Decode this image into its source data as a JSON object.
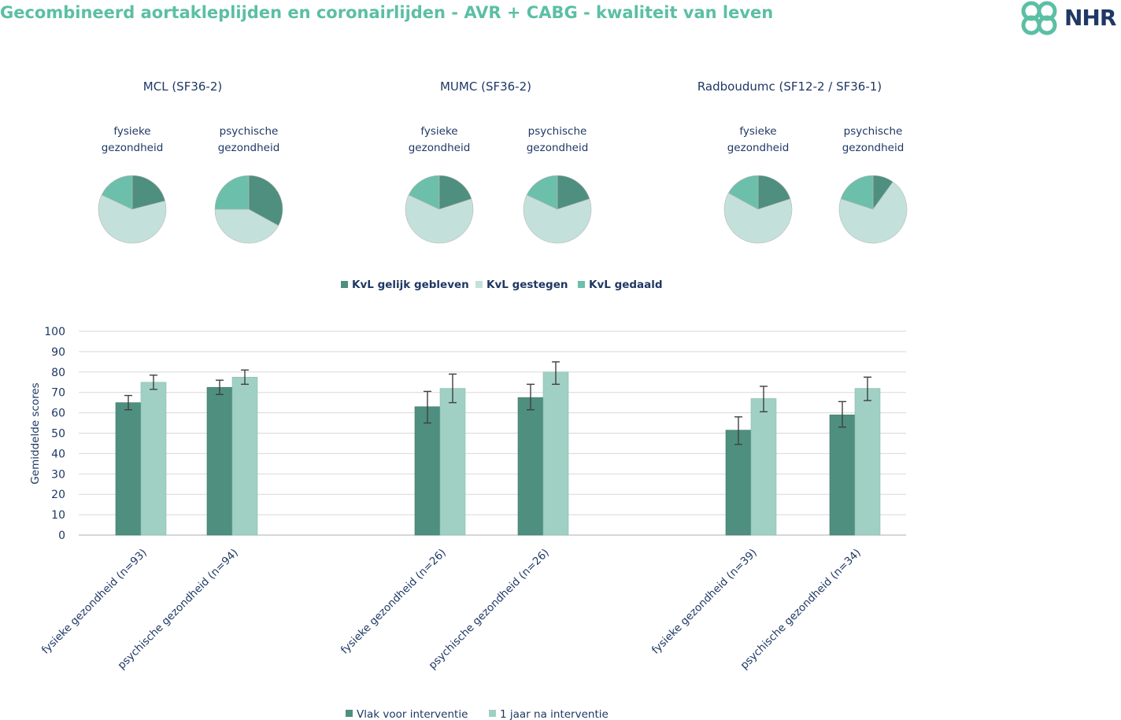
{
  "page": {
    "title": "Gecombineerd aortakleplijden en coronairlijden - AVR + CABG - kwaliteit van leven",
    "logo_text": "NHR"
  },
  "colors": {
    "title": "#5bbfa4",
    "text": "#1f3864",
    "dark_green": "#4f8f7f",
    "light_green": "#a0d0c4",
    "pie_light": "#c3e1da",
    "pie_mid": "#6cbfab",
    "pie_dark": "#4f8f7f",
    "grid": "#d9d9d9",
    "error_bar": "#404040"
  },
  "chart_data": [
    {
      "type": "pie",
      "legend": [
        "KvL gelijk gebleven",
        "KvL gestegen",
        "KvL gedaald"
      ],
      "groups": [
        {
          "title": "MCL (SF36-2)",
          "pies": [
            {
              "label": [
                "fysieke",
                "gezondheid"
              ],
              "values": [
                21,
                61,
                18
              ]
            },
            {
              "label": [
                "psychische",
                "gezondheid"
              ],
              "values": [
                33,
                42,
                25
              ]
            }
          ]
        },
        {
          "title": "MUMC (SF36-2)",
          "pies": [
            {
              "label": [
                "fysieke",
                "gezondheid"
              ],
              "values": [
                20,
                62,
                18
              ]
            },
            {
              "label": [
                "psychische",
                "gezondheid"
              ],
              "values": [
                20,
                62,
                18
              ]
            }
          ]
        },
        {
          "title": "Radboudumc (SF12-2 / SF36-1)",
          "pies": [
            {
              "label": [
                "fysieke",
                "gezondheid"
              ],
              "values": [
                20,
                63,
                17
              ]
            },
            {
              "label": [
                "psychische",
                "gezondheid"
              ],
              "values": [
                10,
                70,
                20
              ]
            }
          ]
        }
      ]
    },
    {
      "type": "bar",
      "ylabel": "Gemiddelde scores",
      "ylim": [
        0,
        100
      ],
      "yticks": [
        0,
        10,
        20,
        30,
        40,
        50,
        60,
        70,
        80,
        90,
        100
      ],
      "grid": true,
      "legend_position": "bottom",
      "categories": [
        "fysieke gezondheid (n=93)",
        "psychische gezondheid (n=94)",
        "fysieke gezondheid (n=26)",
        "psychische gezondheid (n=26)",
        "fysieke gezondheid (n=39)",
        "psychische gezondheid (n=34)"
      ],
      "series": [
        {
          "name": "Vlak voor interventie",
          "values": [
            65,
            72.5,
            63,
            67.5,
            51.5,
            59
          ],
          "error_low": [
            61.5,
            69,
            55,
            61.5,
            44.5,
            53
          ],
          "error_high": [
            68.5,
            76,
            70.5,
            74,
            58,
            65.5
          ]
        },
        {
          "name": "1 jaar na interventie",
          "values": [
            75,
            77.5,
            72,
            80,
            67,
            72
          ],
          "error_low": [
            71.5,
            74,
            65,
            74,
            60.5,
            66
          ],
          "error_high": [
            78.5,
            81,
            79,
            85,
            73,
            77.5
          ]
        }
      ]
    }
  ]
}
